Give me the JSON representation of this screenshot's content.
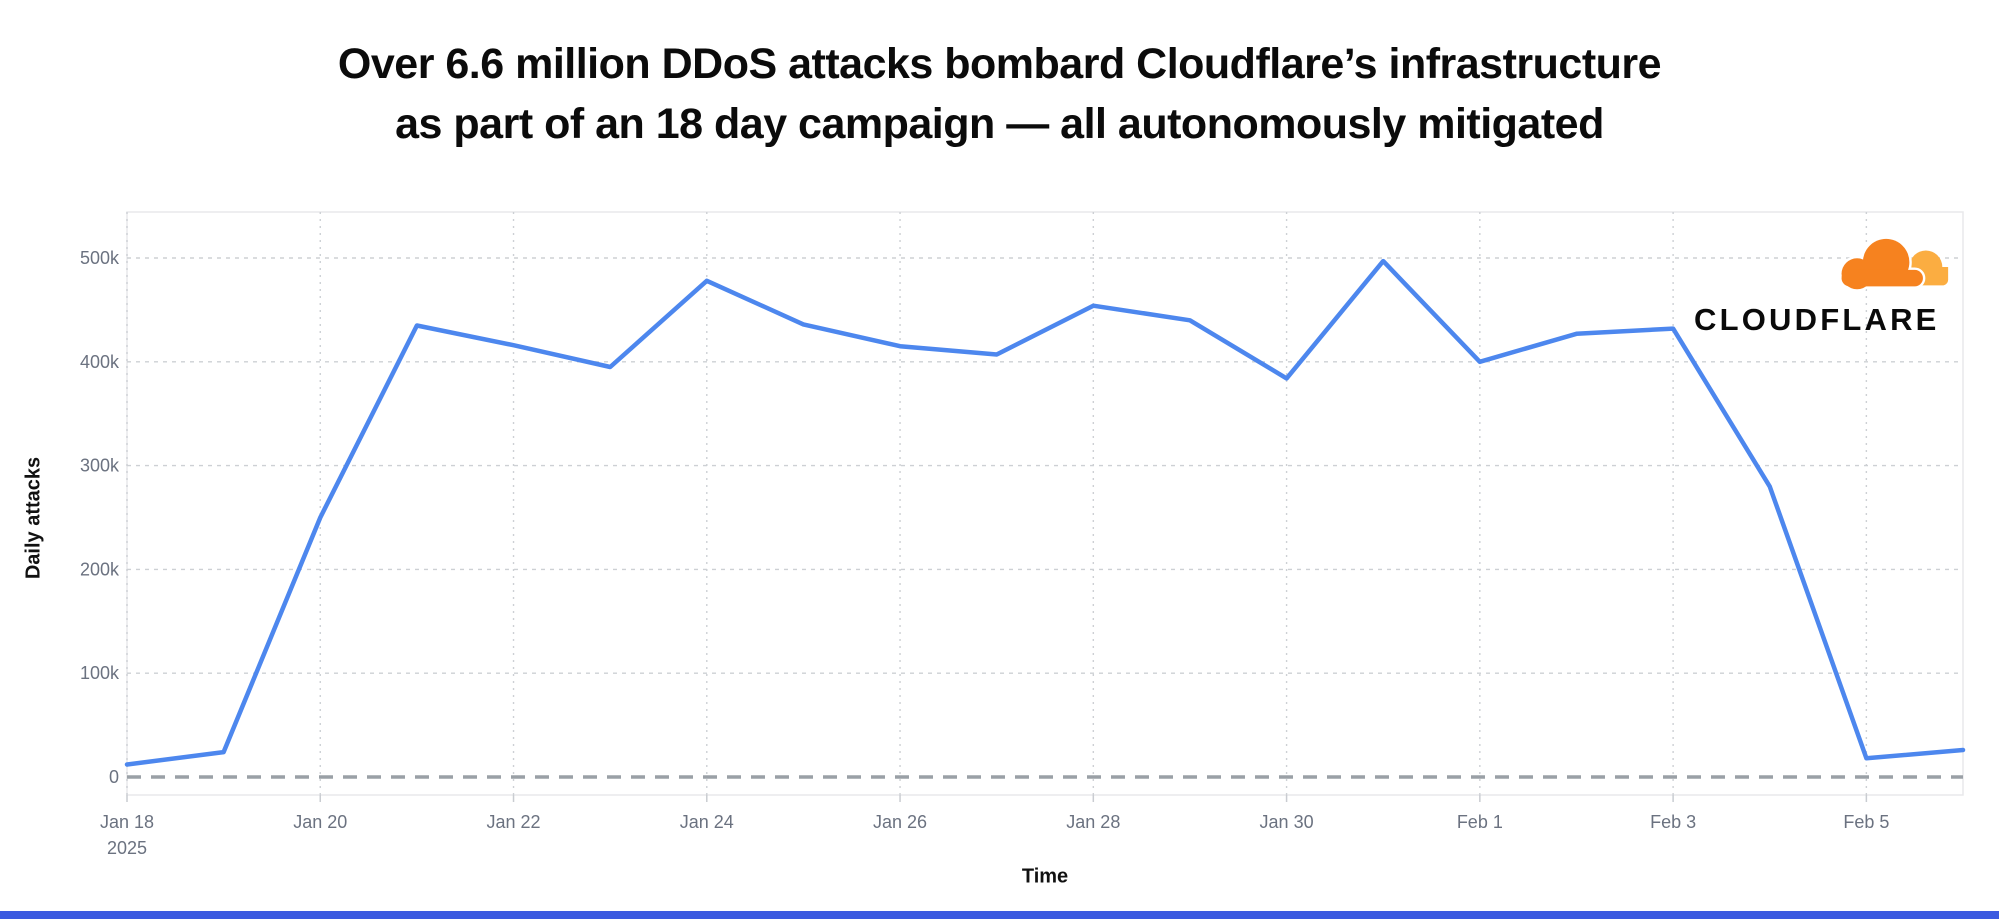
{
  "title": {
    "line1": "Over 6.6 million DDoS attacks bombard Cloudflare’s infrastructure",
    "line2": "as part of an 18 day campaign — all autonomously mitigated"
  },
  "branding": {
    "logo_text": "CLOUDFLARE",
    "logo_icon": "cloudflare-cloud-icon",
    "orange_primary": "#F6821F",
    "orange_light": "#FBAD41",
    "logo_text_color": "#0a0a0a"
  },
  "footer": {
    "accent_bar_color": "#3B5AE0"
  },
  "chart_data": {
    "type": "line",
    "title": "",
    "xlabel": "Time",
    "ylabel": "Daily attacks",
    "x": [
      "Jan 18 2025",
      "Jan 19",
      "Jan 20",
      "Jan 21",
      "Jan 22",
      "Jan 23",
      "Jan 24",
      "Jan 25",
      "Jan 26",
      "Jan 27",
      "Jan 28",
      "Jan 29",
      "Jan 30",
      "Jan 31",
      "Feb 1",
      "Feb 2",
      "Feb 3",
      "Feb 4",
      "Feb 5",
      "Feb 6"
    ],
    "series": [
      {
        "name": "Daily attacks",
        "color": "#4D87EE",
        "values": [
          12000,
          24000,
          250000,
          435000,
          416000,
          395000,
          478000,
          436000,
          415000,
          407000,
          454000,
          440000,
          384000,
          497000,
          400000,
          427000,
          432000,
          280000,
          18000,
          26000
        ]
      }
    ],
    "ylim": [
      0,
      500000
    ],
    "grid": true,
    "legend": "none",
    "zero_line": {
      "style": "dashed",
      "color": "#9AA0A6"
    },
    "gridline_color": "#CDD0D4",
    "tick_label_color": "#6B7280",
    "y_ticks": [
      {
        "label": "0",
        "value": 0
      },
      {
        "label": "100k",
        "value": 100000
      },
      {
        "label": "200k",
        "value": 200000
      },
      {
        "label": "300k",
        "value": 300000
      },
      {
        "label": "400k",
        "value": 400000
      },
      {
        "label": "500k",
        "value": 500000
      }
    ],
    "x_ticks": [
      {
        "label": "Jan 18",
        "sublabel": "2025",
        "day_index": 0
      },
      {
        "label": "Jan 20",
        "day_index": 2
      },
      {
        "label": "Jan 22",
        "day_index": 4
      },
      {
        "label": "Jan 24",
        "day_index": 6
      },
      {
        "label": "Jan 26",
        "day_index": 8
      },
      {
        "label": "Jan 28",
        "day_index": 10
      },
      {
        "label": "Jan 30",
        "day_index": 12
      },
      {
        "label": "Feb 1",
        "day_index": 14
      },
      {
        "label": "Feb 3",
        "day_index": 16
      },
      {
        "label": "Feb 5",
        "day_index": 18
      }
    ]
  }
}
